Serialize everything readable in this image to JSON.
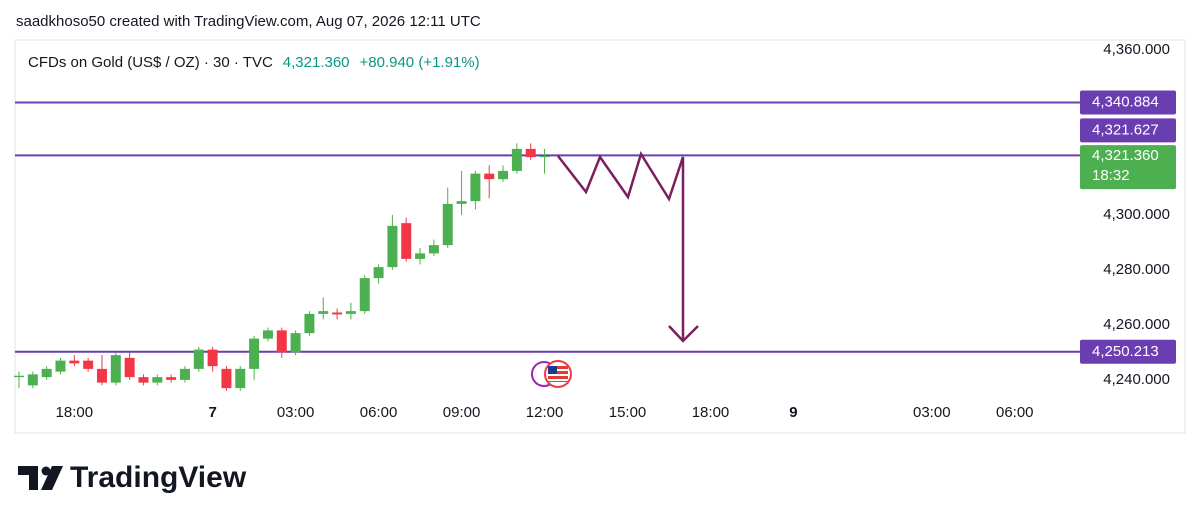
{
  "header": {
    "attribution": "saadkhoso50 created with TradingView.com, Aug 07, 2026 12:11 UTC",
    "brand": "TradingView"
  },
  "chart_data": {
    "type": "candlestick",
    "title": "CFDs on Gold (US$ / OZ) · 30 · TVC",
    "last": "4,321.360",
    "change": "+80.940 (+1.91%)",
    "up_color": "#4caf50",
    "down_color": "#f23645",
    "categories": [
      null,
      null,
      null,
      null,
      "18:00",
      null,
      null,
      null,
      null,
      null,
      null,
      null,
      null,
      null,
      "7",
      null,
      null,
      null,
      null,
      null,
      "03:00",
      null,
      null,
      null,
      null,
      null,
      "06:00",
      null,
      null,
      null,
      null,
      null,
      "09:00",
      null,
      null,
      null,
      null,
      null,
      "12:00",
      null,
      null,
      null,
      null,
      null,
      "15:00",
      null,
      null,
      null,
      null,
      null,
      "18:00",
      null,
      null,
      null,
      null,
      null,
      "9",
      null,
      null,
      null,
      null,
      null,
      null,
      null,
      null,
      null,
      "03:00",
      null,
      null,
      null,
      null,
      null,
      "06:00",
      null,
      null,
      null,
      null
    ],
    "open": [
      4241,
      4238,
      4241,
      4243,
      4247,
      4247,
      4244,
      4239,
      4248,
      4241,
      4239,
      4241,
      4240,
      4244,
      4251,
      4244,
      4237,
      4244,
      4255,
      4258,
      4250,
      4257,
      4264,
      4264.5,
      4264,
      4265,
      4277,
      4281,
      4297,
      4284,
      4286,
      4289,
      4304,
      4305,
      4315,
      4313,
      4316,
      4324,
      4321,
      null,
      null,
      null,
      null,
      null,
      null,
      null,
      null,
      null,
      null,
      null,
      null,
      null,
      null,
      null,
      null,
      null,
      null,
      null,
      null,
      null,
      null,
      null,
      null,
      null,
      null,
      null,
      null,
      null,
      null,
      null,
      null,
      null,
      null,
      null,
      null,
      null,
      null
    ],
    "high": [
      4243,
      4243,
      4245,
      4248,
      4249,
      4248,
      4249,
      4250,
      4250,
      4242,
      4242,
      4242,
      4245,
      4252,
      4252,
      4245,
      4245,
      4256,
      4259,
      4259,
      4258,
      4265,
      4270,
      4266,
      4268,
      4278,
      4282,
      4300,
      4299,
      4288,
      4291,
      4310,
      4316,
      4316,
      4318,
      4318,
      4326,
      4326,
      4324,
      null,
      null,
      null,
      null,
      null,
      null,
      null,
      null,
      null,
      null,
      null,
      null,
      null,
      null,
      null,
      null,
      null,
      null,
      null,
      null,
      null,
      null,
      null,
      null,
      null,
      null,
      null,
      null,
      null,
      null,
      null,
      null,
      null,
      null,
      null,
      null,
      null,
      null
    ],
    "low": [
      4237,
      4237,
      4240,
      4242,
      4245,
      4243,
      4238,
      4238,
      4240,
      4238,
      4238,
      4239,
      4239,
      4243,
      4243,
      4236,
      4236,
      4240,
      4254,
      4248,
      4249,
      4256,
      4262,
      4262,
      4262,
      4264,
      4275,
      4280,
      4283,
      4282,
      4285,
      4288,
      4300,
      4302,
      4306,
      4312,
      4315,
      4320,
      4315,
      null,
      null,
      null,
      null,
      null,
      null,
      null,
      null,
      null,
      null,
      null,
      null,
      null,
      null,
      null,
      null,
      null,
      null,
      null,
      null,
      null,
      null,
      null,
      null,
      null,
      null,
      null,
      null,
      null,
      null,
      null,
      null,
      null,
      null,
      null,
      null,
      null,
      null
    ],
    "close": [
      4241.5,
      4242,
      4244,
      4247,
      4246,
      4244,
      4239,
      4249,
      4241,
      4239,
      4241,
      4240,
      4244,
      4251,
      4245,
      4237,
      4244,
      4255,
      4258,
      4250,
      4257,
      4264,
      4265,
      4263.8,
      4265,
      4277,
      4281,
      4296,
      4284,
      4286,
      4289,
      4304,
      4305,
      4315,
      4313,
      4316,
      4324,
      4321,
      4321.36,
      null,
      null,
      null,
      null,
      null,
      null,
      null,
      null,
      null,
      null,
      null,
      null,
      null,
      null,
      null,
      null,
      null,
      null,
      null,
      null,
      null,
      null,
      null,
      null,
      null,
      null,
      null,
      null,
      null,
      null,
      null,
      null,
      null,
      null,
      null,
      null,
      null,
      null
    ],
    "levels": [
      {
        "value": 4340.884,
        "label": "4,340.884"
      },
      {
        "value": 4321.627,
        "label": "4,321.627"
      },
      {
        "value": 4250.213,
        "label": "4,250.213"
      }
    ],
    "level_color": "#6a3db0",
    "price_tag": {
      "value": 4321.36,
      "label": "4,321.360",
      "countdown": "18:32"
    },
    "ylim": [
      4234.5,
      4363.6
    ],
    "yticks": [
      {
        "value": 4240,
        "label": "4,240.000"
      },
      {
        "value": 4260,
        "label": "4,260.000"
      },
      {
        "value": 4280,
        "label": "4,280.000"
      },
      {
        "value": 4300,
        "label": "4,300.000"
      },
      {
        "value": 4360,
        "label": "4,360.000"
      }
    ],
    "grid": false
  }
}
